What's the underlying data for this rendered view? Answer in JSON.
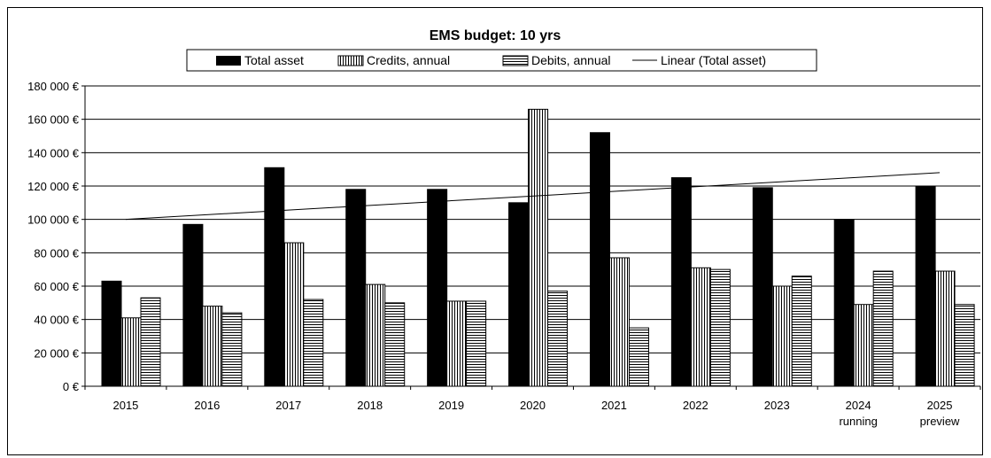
{
  "chart_data": {
    "type": "bar",
    "title": "EMS budget: 10 yrs",
    "categories": [
      "2015",
      "2016",
      "2017",
      "2018",
      "2019",
      "2020",
      "2021",
      "2022",
      "2023",
      "2024",
      "2025"
    ],
    "category_sublabels": [
      "",
      "",
      "",
      "",
      "",
      "",
      "",
      "",
      "",
      "running",
      "preview"
    ],
    "series": [
      {
        "name": "Total asset",
        "values": [
          63000,
          97000,
          131000,
          118000,
          118000,
          110000,
          152000,
          125000,
          119000,
          100000,
          120000
        ]
      },
      {
        "name": "Credits, annual",
        "values": [
          41000,
          48000,
          86000,
          61000,
          51000,
          166000,
          77000,
          71000,
          60000,
          49000,
          69000
        ]
      },
      {
        "name": "Debits, annual",
        "values": [
          53000,
          44000,
          52000,
          50000,
          51000,
          57000,
          35000,
          70000,
          66000,
          69000,
          49000
        ]
      }
    ],
    "trendline": {
      "name": "Linear (Total asset)",
      "start": 100000,
      "end": 128000
    },
    "ylim": [
      0,
      180000
    ],
    "y_ticks": [
      "0 €",
      "20 000 €",
      "40 000 €",
      "60 000 €",
      "80 000 €",
      "100 000 €",
      "120 000 €",
      "140 000 €",
      "160 000 €",
      "180 000 €"
    ],
    "y_tick_values": [
      0,
      20000,
      40000,
      60000,
      80000,
      100000,
      120000,
      140000,
      160000,
      180000
    ],
    "grid": true,
    "legend_position": "top",
    "colors": {
      "total": "#000000",
      "stroke": "#000000",
      "background": "#ffffff"
    }
  }
}
